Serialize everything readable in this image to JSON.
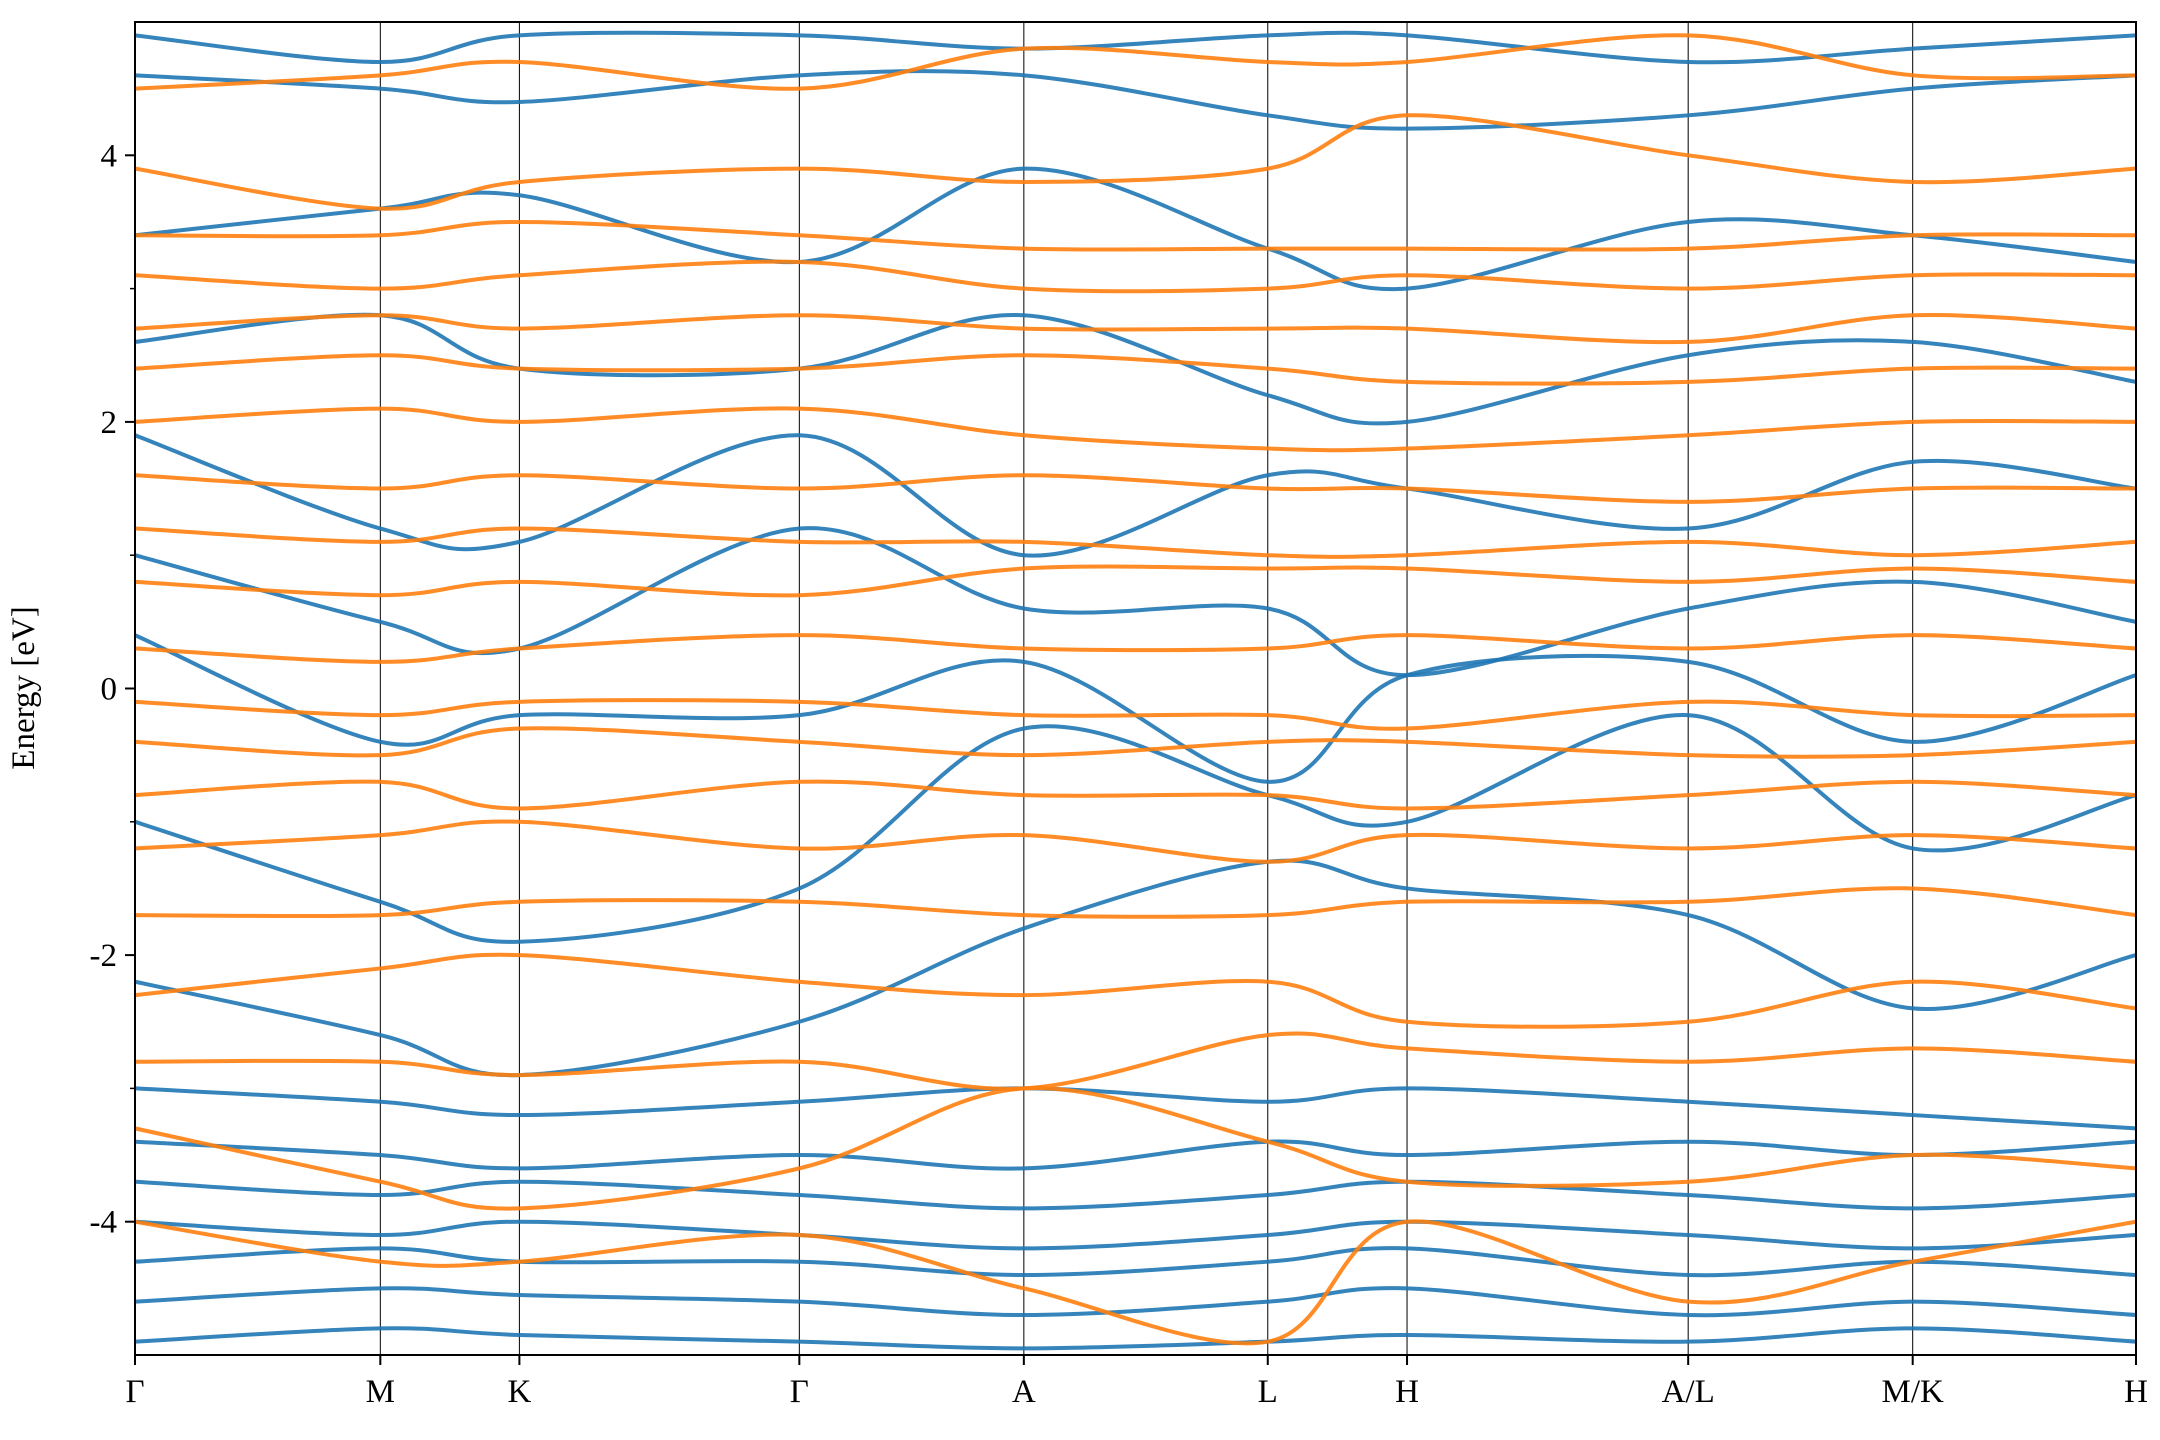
{
  "chart_data": {
    "type": "line",
    "ylabel": "Energy [eV]",
    "x": [
      0,
      0.1226,
      0.1921,
      0.332,
      0.4442,
      0.5661,
      0.6357,
      0.7762,
      0.8884,
      1
    ],
    "xlim": [
      0,
      1
    ],
    "xticks": [
      {
        "value": 0,
        "label": "Γ"
      },
      {
        "value": 0.1226,
        "label": "M"
      },
      {
        "value": 0.1921,
        "label": "K"
      },
      {
        "value": 0.332,
        "label": "Γ"
      },
      {
        "value": 0.4442,
        "label": "A"
      },
      {
        "value": 0.5661,
        "label": "L"
      },
      {
        "value": 0.6357,
        "label": "H"
      },
      {
        "value": 0.7762,
        "label": "A/L"
      },
      {
        "value": 0.8884,
        "label": "M/K"
      },
      {
        "value": 1,
        "label": "H"
      }
    ],
    "ylim": [
      -5,
      5
    ],
    "yticks": [
      -4,
      -2,
      0,
      2,
      4
    ],
    "yminor_ticks": [
      -3,
      -1,
      1,
      3
    ],
    "series": [
      {
        "color": "#1f77b4",
        "values": [
          -4.9,
          -4.8,
          -4.85,
          -4.9,
          -4.95,
          -4.9,
          -4.85,
          -4.9,
          -4.8,
          -4.9
        ]
      },
      {
        "color": "#1f77b4",
        "values": [
          -4.6,
          -4.5,
          -4.55,
          -4.6,
          -4.7,
          -4.6,
          -4.5,
          -4.7,
          -4.6,
          -4.7
        ]
      },
      {
        "color": "#1f77b4",
        "values": [
          -4.3,
          -4.2,
          -4.3,
          -4.3,
          -4.4,
          -4.3,
          -4.2,
          -4.4,
          -4.3,
          -4.4
        ]
      },
      {
        "color": "#1f77b4",
        "values": [
          -4.0,
          -4.1,
          -4.0,
          -4.1,
          -4.2,
          -4.1,
          -4.0,
          -4.1,
          -4.2,
          -4.1
        ]
      },
      {
        "color": "#1f77b4",
        "values": [
          -3.7,
          -3.8,
          -3.7,
          -3.8,
          -3.9,
          -3.8,
          -3.7,
          -3.8,
          -3.9,
          -3.8
        ]
      },
      {
        "color": "#1f77b4",
        "values": [
          -3.4,
          -3.5,
          -3.6,
          -3.5,
          -3.6,
          -3.4,
          -3.5,
          -3.4,
          -3.5,
          -3.4
        ]
      },
      {
        "color": "#1f77b4",
        "values": [
          -3.0,
          -3.1,
          -3.2,
          -3.1,
          -3.0,
          -3.1,
          -3.0,
          -3.1,
          -3.2,
          -3.3
        ]
      },
      {
        "color": "#1f77b4",
        "values": [
          -2.2,
          -2.6,
          -2.9,
          -2.5,
          -1.8,
          -1.3,
          -1.5,
          -1.7,
          -2.4,
          -2.0
        ]
      },
      {
        "color": "#1f77b4",
        "values": [
          -1.0,
          -1.6,
          -1.9,
          -1.5,
          -0.3,
          -0.8,
          -1.0,
          -0.2,
          -1.2,
          -0.8
        ]
      },
      {
        "color": "#1f77b4",
        "values": [
          0.4,
          -0.4,
          -0.2,
          -0.2,
          0.2,
          -0.7,
          0.1,
          0.2,
          -0.4,
          0.1
        ]
      },
      {
        "color": "#1f77b4",
        "values": [
          1.0,
          0.5,
          0.3,
          1.2,
          0.6,
          0.6,
          0.1,
          0.6,
          0.8,
          0.5
        ]
      },
      {
        "color": "#1f77b4",
        "values": [
          1.9,
          1.2,
          1.1,
          1.9,
          1.0,
          1.6,
          1.5,
          1.2,
          1.7,
          1.5
        ]
      },
      {
        "color": "#1f77b4",
        "values": [
          2.6,
          2.8,
          2.4,
          2.4,
          2.8,
          2.2,
          2.0,
          2.5,
          2.6,
          2.3
        ]
      },
      {
        "color": "#1f77b4",
        "values": [
          3.4,
          3.6,
          3.7,
          3.2,
          3.9,
          3.3,
          3.0,
          3.5,
          3.4,
          3.2
        ]
      },
      {
        "color": "#1f77b4",
        "values": [
          4.6,
          4.5,
          4.4,
          4.6,
          4.6,
          4.3,
          4.2,
          4.3,
          4.5,
          4.6
        ]
      },
      {
        "color": "#1f77b4",
        "values": [
          4.9,
          4.7,
          4.9,
          4.9,
          4.8,
          4.9,
          4.9,
          4.7,
          4.8,
          4.9
        ]
      },
      {
        "color": "#ff7f0e",
        "values": [
          -4.0,
          -4.3,
          -4.3,
          -4.1,
          -4.5,
          -4.9,
          -4.0,
          -4.6,
          -4.3,
          -4.0
        ]
      },
      {
        "color": "#ff7f0e",
        "values": [
          -3.3,
          -3.7,
          -3.9,
          -3.6,
          -3.0,
          -3.4,
          -3.7,
          -3.7,
          -3.5,
          -3.6
        ]
      },
      {
        "color": "#ff7f0e",
        "values": [
          -2.8,
          -2.8,
          -2.9,
          -2.8,
          -3.0,
          -2.6,
          -2.7,
          -2.8,
          -2.7,
          -2.8
        ]
      },
      {
        "color": "#ff7f0e",
        "values": [
          -2.3,
          -2.1,
          -2.0,
          -2.2,
          -2.3,
          -2.2,
          -2.5,
          -2.5,
          -2.2,
          -2.4
        ]
      },
      {
        "color": "#ff7f0e",
        "values": [
          -1.7,
          -1.7,
          -1.6,
          -1.6,
          -1.7,
          -1.7,
          -1.6,
          -1.6,
          -1.5,
          -1.7
        ]
      },
      {
        "color": "#ff7f0e",
        "values": [
          -1.2,
          -1.1,
          -1.0,
          -1.2,
          -1.1,
          -1.3,
          -1.1,
          -1.2,
          -1.1,
          -1.2
        ]
      },
      {
        "color": "#ff7f0e",
        "values": [
          -0.8,
          -0.7,
          -0.9,
          -0.7,
          -0.8,
          -0.8,
          -0.9,
          -0.8,
          -0.7,
          -0.8
        ]
      },
      {
        "color": "#ff7f0e",
        "values": [
          -0.4,
          -0.5,
          -0.3,
          -0.4,
          -0.5,
          -0.4,
          -0.4,
          -0.5,
          -0.5,
          -0.4
        ]
      },
      {
        "color": "#ff7f0e",
        "values": [
          -0.1,
          -0.2,
          -0.1,
          -0.1,
          -0.2,
          -0.2,
          -0.3,
          -0.1,
          -0.2,
          -0.2
        ]
      },
      {
        "color": "#ff7f0e",
        "values": [
          0.3,
          0.2,
          0.3,
          0.4,
          0.3,
          0.3,
          0.4,
          0.3,
          0.4,
          0.3
        ]
      },
      {
        "color": "#ff7f0e",
        "values": [
          0.8,
          0.7,
          0.8,
          0.7,
          0.9,
          0.9,
          0.9,
          0.8,
          0.9,
          0.8
        ]
      },
      {
        "color": "#ff7f0e",
        "values": [
          1.2,
          1.1,
          1.2,
          1.1,
          1.1,
          1.0,
          1.0,
          1.1,
          1.0,
          1.1
        ]
      },
      {
        "color": "#ff7f0e",
        "values": [
          1.6,
          1.5,
          1.6,
          1.5,
          1.6,
          1.5,
          1.5,
          1.4,
          1.5,
          1.5
        ]
      },
      {
        "color": "#ff7f0e",
        "values": [
          2.0,
          2.1,
          2.0,
          2.1,
          1.9,
          1.8,
          1.8,
          1.9,
          2.0,
          2.0
        ]
      },
      {
        "color": "#ff7f0e",
        "values": [
          2.4,
          2.5,
          2.4,
          2.4,
          2.5,
          2.4,
          2.3,
          2.3,
          2.4,
          2.4
        ]
      },
      {
        "color": "#ff7f0e",
        "values": [
          2.7,
          2.8,
          2.7,
          2.8,
          2.7,
          2.7,
          2.7,
          2.6,
          2.8,
          2.7
        ]
      },
      {
        "color": "#ff7f0e",
        "values": [
          3.1,
          3.0,
          3.1,
          3.2,
          3.0,
          3.0,
          3.1,
          3.0,
          3.1,
          3.1
        ]
      },
      {
        "color": "#ff7f0e",
        "values": [
          3.4,
          3.4,
          3.5,
          3.4,
          3.3,
          3.3,
          3.3,
          3.3,
          3.4,
          3.4
        ]
      },
      {
        "color": "#ff7f0e",
        "values": [
          3.9,
          3.6,
          3.8,
          3.9,
          3.8,
          3.9,
          4.3,
          4.0,
          3.8,
          3.9
        ]
      },
      {
        "color": "#ff7f0e",
        "values": [
          4.5,
          4.6,
          4.7,
          4.5,
          4.8,
          4.7,
          4.7,
          4.9,
          4.6,
          4.6
        ]
      }
    ]
  }
}
